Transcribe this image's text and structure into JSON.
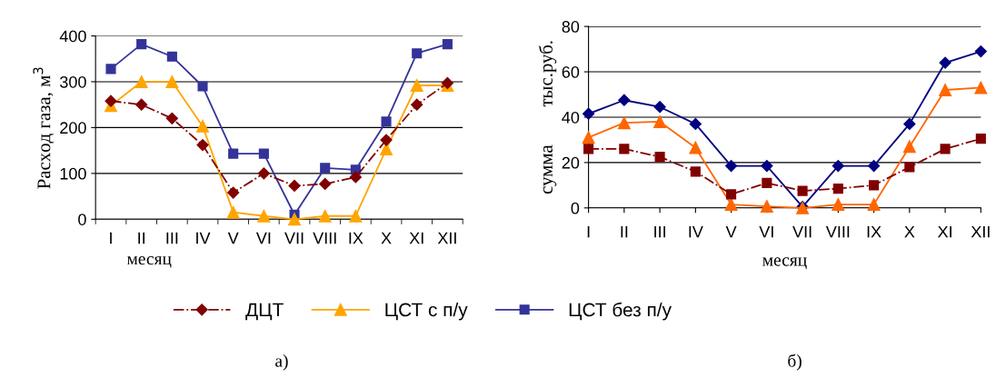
{
  "chart_data": [
    {
      "type": "line",
      "ylabel": "Расход газа, м$^{3}$",
      "xlabel": "месяц",
      "categories": [
        "I",
        "II",
        "III",
        "IV",
        "V",
        "VI",
        "VII",
        "VIII",
        "IX",
        "X",
        "XI",
        "XII"
      ],
      "ylim": [
        0,
        400
      ],
      "yticks": [
        0,
        100,
        200,
        300,
        400
      ],
      "grid": "y",
      "legend": "bottom",
      "annotations": [
        "а)"
      ],
      "series": [
        {
          "name": "ДЦТ",
          "color": "#800000",
          "marker": "diamond",
          "line_style": "dashdot",
          "values": [
            258,
            250,
            220,
            162,
            58,
            100,
            73,
            77,
            92,
            173,
            250,
            297
          ]
        },
        {
          "name": "ЦСТ с п/у",
          "color": "#ffa500",
          "marker": "triangle",
          "line_style": "solid",
          "values": [
            248,
            300,
            300,
            203,
            15,
            7,
            0,
            7,
            7,
            153,
            292,
            292
          ]
        },
        {
          "name": "ЦСТ без п/у",
          "color": "#333399",
          "marker": "square",
          "line_style": "solid",
          "values": [
            328,
            382,
            355,
            290,
            143,
            143,
            10,
            112,
            108,
            213,
            362,
            382
          ]
        }
      ]
    },
    {
      "type": "line",
      "ylabel": "сумма        тыс.руб.",
      "xlabel": "месяц",
      "categories": [
        "I",
        "II",
        "III",
        "IV",
        "V",
        "VI",
        "VII",
        "VIII",
        "IX",
        "X",
        "XI",
        "XII"
      ],
      "ylim": [
        0,
        80
      ],
      "yticks": [
        0,
        20,
        40,
        60,
        80
      ],
      "grid": "y",
      "annotations": [
        "б)"
      ],
      "series": [
        {
          "color": "#800000",
          "marker": "square",
          "line_style": "dashdot",
          "values": [
            26,
            26,
            22.5,
            16,
            6,
            11,
            7.5,
            8.5,
            10,
            18,
            26,
            30.5
          ]
        },
        {
          "color": "#ff6600",
          "marker": "triangle",
          "line_style": "solid",
          "values": [
            31,
            37.5,
            38,
            26.5,
            1.5,
            0.7,
            0,
            1.5,
            1.5,
            27,
            52,
            53
          ]
        },
        {
          "color": "#000080",
          "marker": "diamond",
          "line_style": "solid",
          "values": [
            41.5,
            47.5,
            44.5,
            37,
            18.5,
            18.5,
            0.5,
            18.5,
            18.5,
            37,
            64,
            69
          ]
        }
      ]
    }
  ]
}
